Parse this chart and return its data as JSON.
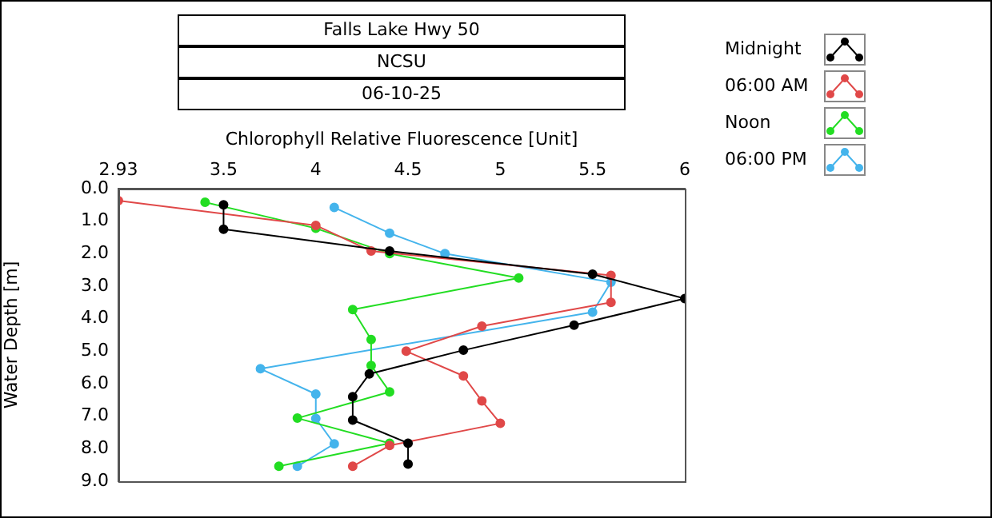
{
  "chart_data": {
    "type": "line",
    "title": "Falls Lake Hwy 50",
    "subtitle": "NCSU",
    "annotations": [
      "06-10-25"
    ],
    "xlabel": "Chlorophyll Relative Fluorescence [Unit]",
    "ylabel": "Water Depth [m]",
    "xlim": [
      2.93,
      6
    ],
    "xticks": [
      {
        "value": 2.93,
        "label": "2.93"
      },
      3.5,
      4,
      4.5,
      5,
      5.5,
      6
    ],
    "ylim": [
      9,
      0
    ],
    "yticks": [
      {
        "value": 0,
        "label": "0.0"
      },
      {
        "value": 1,
        "label": "1.0"
      },
      {
        "value": 2,
        "label": "2.0"
      },
      {
        "value": 3,
        "label": "3.0"
      },
      {
        "value": 4,
        "label": "4.0"
      },
      {
        "value": 5,
        "label": "5.0"
      },
      {
        "value": 6,
        "label": "6.0"
      },
      {
        "value": 7,
        "label": "7.0"
      },
      {
        "value": 8,
        "label": "8.0"
      },
      {
        "value": 9,
        "label": "9.0"
      }
    ],
    "grid": false,
    "legend": "top right",
    "marker": "circle",
    "line_style": "solid",
    "series": [
      {
        "name": "Midnight",
        "color": "#000000",
        "x": [
          3.5,
          3.5,
          4.4,
          5.5,
          6,
          5.4,
          4.8,
          4.29,
          4.2,
          4.2,
          4.5,
          4.5
        ],
        "values": [
          0.5,
          1.25,
          1.92,
          2.63,
          3.38,
          4.2,
          4.97,
          5.7,
          6.4,
          7.12,
          7.83,
          8.47
        ]
      },
      {
        "name": "06:00 AM",
        "color": "#e04848",
        "x": [
          2.93,
          4.0,
          4.3,
          5.6,
          5.6,
          4.9,
          4.49,
          4.8,
          4.9,
          5.0,
          4.4,
          4.2
        ],
        "values": [
          0.37,
          1.13,
          1.92,
          2.67,
          3.5,
          4.23,
          5.0,
          5.76,
          6.53,
          7.22,
          7.9,
          8.54
        ]
      },
      {
        "name": "Noon",
        "color": "#22dd22",
        "x": [
          3.4,
          4.0,
          4.4,
          5.1,
          4.2,
          4.3,
          4.3,
          4.4,
          3.9,
          4.4,
          3.8
        ],
        "values": [
          0.42,
          1.22,
          2.0,
          2.75,
          3.72,
          4.64,
          5.44,
          6.25,
          7.06,
          7.83,
          8.54
        ]
      },
      {
        "name": "06:00 PM",
        "color": "#44b4ec",
        "x": [
          4.1,
          4.4,
          4.7,
          5.6,
          5.5,
          3.7,
          4.0,
          4.0,
          4.1,
          3.9
        ],
        "values": [
          0.58,
          1.37,
          2.0,
          2.88,
          3.8,
          5.54,
          6.32,
          7.07,
          7.85,
          8.54
        ]
      }
    ]
  }
}
